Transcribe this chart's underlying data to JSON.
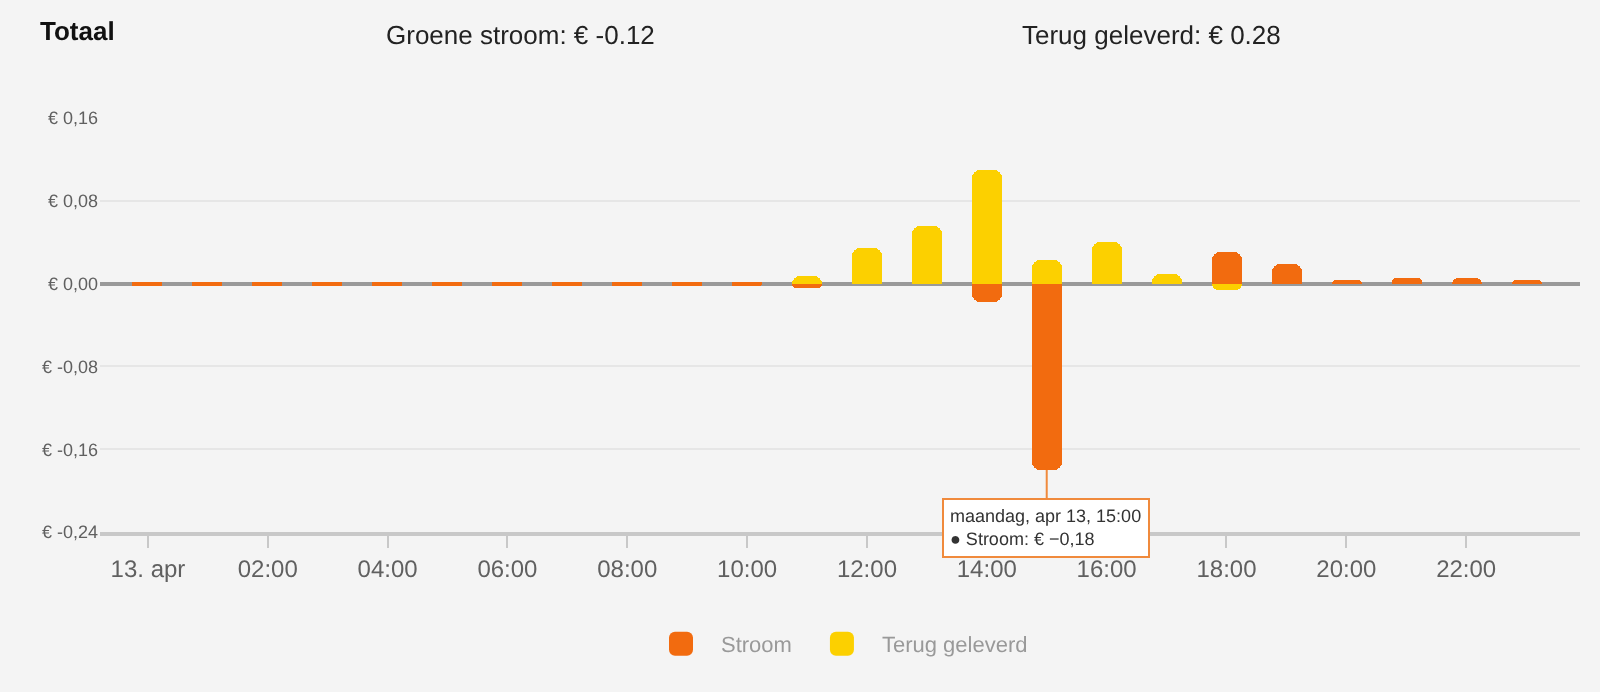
{
  "chart_data": {
    "type": "bar",
    "title": "Totaal",
    "annotations": [
      "Groene stroom: € -0.12",
      "Terug geleverd: € 0.28",
      {
        "text": "maandag, apr 13, 15:00\n● Stroom: € −0,18",
        "x": 15,
        "y": -0.18
      }
    ],
    "x": [
      0,
      1,
      2,
      3,
      4,
      5,
      6,
      7,
      8,
      9,
      10,
      11,
      12,
      13,
      14,
      15,
      16,
      17,
      18,
      19,
      20,
      21,
      22,
      23
    ],
    "series": [
      {
        "name": "Stroom",
        "color": "#f26b0f",
        "values": [
          -0.001,
          -0.001,
          -0.001,
          -0.001,
          -0.001,
          -0.001,
          -0.001,
          -0.001,
          -0.001,
          -0.001,
          -0.002,
          -0.005,
          0,
          0,
          -0.017,
          -0.18,
          0,
          0,
          0.03,
          0.019,
          0.004,
          0.005,
          0.006,
          0.004
        ]
      },
      {
        "name": "Terug geleverd",
        "color": "#fcd000",
        "values": [
          null,
          null,
          null,
          null,
          null,
          null,
          null,
          null,
          null,
          null,
          null,
          0.008,
          0.034,
          0.055,
          0.109,
          0.023,
          0.04,
          0.01,
          -0.006,
          null,
          null,
          null,
          null,
          null
        ]
      }
    ],
    "xlim": [
      -0.8,
      23.9
    ],
    "xticks": [
      {
        "value": 0,
        "label": "13. apr"
      },
      {
        "value": 2,
        "label": "02:00"
      },
      {
        "value": 4,
        "label": "04:00"
      },
      {
        "value": 6,
        "label": "06:00"
      },
      {
        "value": 8,
        "label": "08:00"
      },
      {
        "value": 10,
        "label": "10:00"
      },
      {
        "value": 12,
        "label": "12:00"
      },
      {
        "value": 14,
        "label": "14:00"
      },
      {
        "value": 16,
        "label": "16:00"
      },
      {
        "value": 18,
        "label": "18:00"
      },
      {
        "value": 20,
        "label": "20:00"
      },
      {
        "value": 22,
        "label": "22:00"
      }
    ],
    "ylim": [
      -0.24,
      0.16
    ],
    "yticks": [
      {
        "value": -0.24,
        "label": "€ -0,24"
      },
      {
        "value": -0.16,
        "label": "€ -0,16"
      },
      {
        "value": -0.08,
        "label": "€ -0,08"
      },
      {
        "value": 0,
        "label": "€ 0,00"
      },
      {
        "value": 0.08,
        "label": "€ 0,08"
      },
      {
        "value": 0.16,
        "label": "€ 0,16"
      }
    ],
    "grid": "y",
    "legend": "bottom"
  }
}
